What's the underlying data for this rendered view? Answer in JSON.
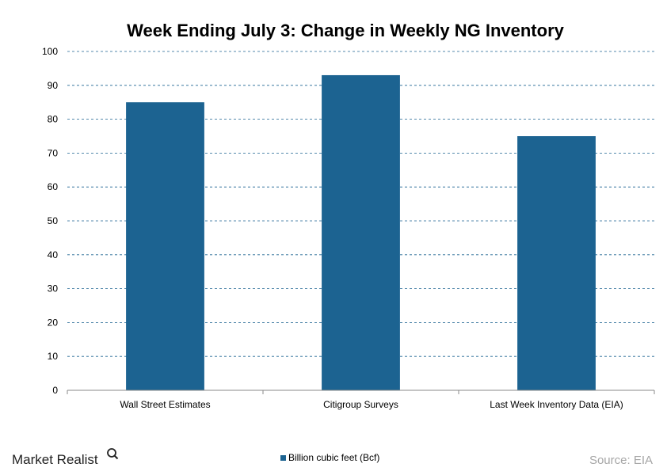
{
  "chart_data": {
    "type": "bar",
    "title": "Week Ending July 3: Change in Weekly NG Inventory",
    "categories": [
      "Wall Street Estimates",
      "Citigroup Surveys",
      "Last Week Inventory Data (EIA)"
    ],
    "series": [
      {
        "name": "Billion cubic feet (Bcf)",
        "values": [
          85,
          93,
          75
        ],
        "color": "#1c6391"
      }
    ],
    "ylim": [
      0,
      100
    ],
    "yticks": [
      0,
      10,
      20,
      30,
      40,
      50,
      60,
      70,
      80,
      90,
      100
    ],
    "grid": true,
    "legend_position": "bottom-center"
  },
  "footer": {
    "brand": "Market Realist",
    "brand_icon": "magnifier-icon",
    "source": "Source: EIA"
  }
}
